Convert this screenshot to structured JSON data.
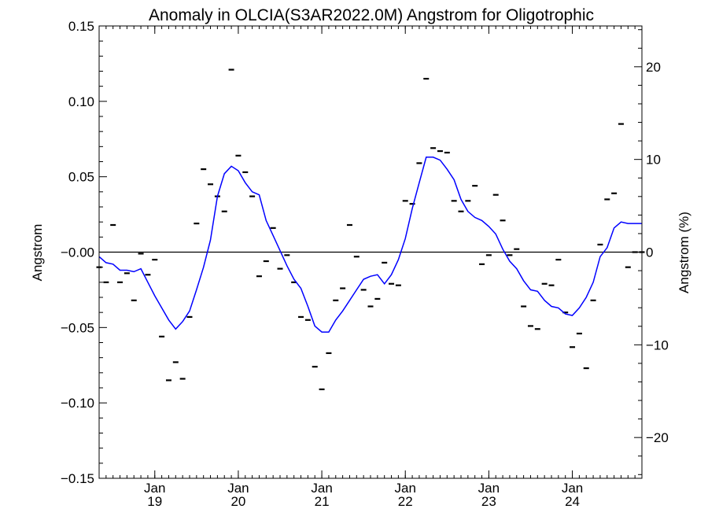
{
  "chart_data": {
    "type": "scatter",
    "title": "Anomaly in OLCIA(S3AR2022.0M) Angstrom for Oligotrophic",
    "ylabel": "Angstrom",
    "ylabel_right": "Angstrom (%)",
    "xlabel": "",
    "ylim": [
      -0.15,
      0.15
    ],
    "ylim_right": [
      -24.4,
      24.4
    ],
    "xlim": [
      "2018-05",
      "2024-11"
    ],
    "grid": false,
    "colors": {
      "line": "#0000ff",
      "points": "#000000",
      "zero_line": "#000000"
    },
    "y_ticks": [
      {
        "value": 0.15,
        "label": "0.15"
      },
      {
        "value": 0.1,
        "label": "0.10"
      },
      {
        "value": 0.05,
        "label": "0.05"
      },
      {
        "value": 0.0,
        "label": "-0.00"
      },
      {
        "value": -0.05,
        "label": "-0.05"
      },
      {
        "value": -0.1,
        "label": "-0.10"
      },
      {
        "value": -0.15,
        "label": "-0.15"
      }
    ],
    "y_ticks_right": [
      {
        "value": 20,
        "label": "20"
      },
      {
        "value": 10,
        "label": "10"
      },
      {
        "value": 0,
        "label": "0"
      },
      {
        "value": -10,
        "label": "-10"
      },
      {
        "value": -20,
        "label": "-20"
      }
    ],
    "x_ticks": [
      {
        "date": "2019-01",
        "month": "Jan",
        "year": "19"
      },
      {
        "date": "2020-01",
        "month": "Jan",
        "year": "20"
      },
      {
        "date": "2021-01",
        "month": "Jan",
        "year": "21"
      },
      {
        "date": "2022-01",
        "month": "Jan",
        "year": "22"
      },
      {
        "date": "2023-01",
        "month": "Jan",
        "year": "23"
      },
      {
        "date": "2024-01",
        "month": "Jan",
        "year": "24"
      }
    ],
    "series": [
      {
        "kind": "points",
        "x": [
          "2018-05",
          "2018-06",
          "2018-07",
          "2018-08",
          "2018-09",
          "2018-10",
          "2018-11",
          "2018-12",
          "2019-01",
          "2019-02",
          "2019-03",
          "2019-04",
          "2019-05",
          "2019-06",
          "2019-07",
          "2019-08",
          "2019-09",
          "2019-10",
          "2019-11",
          "2019-12",
          "2020-01",
          "2020-02",
          "2020-03",
          "2020-04",
          "2020-05",
          "2020-06",
          "2020-07",
          "2020-08",
          "2020-09",
          "2020-10",
          "2020-11",
          "2020-12",
          "2021-01",
          "2021-02",
          "2021-03",
          "2021-04",
          "2021-05",
          "2021-06",
          "2021-07",
          "2021-08",
          "2021-09",
          "2021-10",
          "2021-11",
          "2021-12",
          "2022-01",
          "2022-02",
          "2022-03",
          "2022-04",
          "2022-05",
          "2022-06",
          "2022-07",
          "2022-08",
          "2022-09",
          "2022-10",
          "2022-11",
          "2022-12",
          "2023-01",
          "2023-02",
          "2023-03",
          "2023-04",
          "2023-05",
          "2023-06",
          "2023-07",
          "2023-08",
          "2023-09",
          "2023-10",
          "2023-11",
          "2023-12",
          "2024-01",
          "2024-02",
          "2024-03",
          "2024-04",
          "2024-05",
          "2024-06",
          "2024-07",
          "2024-08",
          "2024-09",
          "2024-10",
          "2024-11"
        ],
        "y": [
          -0.01,
          -0.02,
          0.018,
          -0.02,
          -0.014,
          -0.032,
          -0.001,
          -0.015,
          -0.005,
          -0.056,
          -0.085,
          -0.073,
          -0.084,
          -0.043,
          0.019,
          0.055,
          0.045,
          0.037,
          0.027,
          0.121,
          0.064,
          0.053,
          0.037,
          -0.016,
          -0.006,
          0.016,
          -0.011,
          -0.002,
          -0.02,
          -0.043,
          -0.045,
          -0.076,
          -0.091,
          -0.067,
          -0.032,
          -0.024,
          0.018,
          -0.003,
          -0.025,
          -0.036,
          -0.031,
          -0.007,
          -0.021,
          -0.022,
          0.034,
          0.032,
          0.059,
          0.115,
          0.069,
          0.067,
          0.066,
          0.034,
          0.027,
          0.034,
          0.044,
          -0.008,
          -0.002,
          0.038,
          0.021,
          -0.002,
          0.002,
          -0.036,
          -0.049,
          -0.051,
          -0.021,
          -0.022,
          -0.005,
          -0.04,
          -0.063,
          -0.054,
          -0.077,
          -0.032,
          0.005,
          0.035,
          0.039,
          0.085,
          -0.01,
          0.0,
          0.0
        ]
      },
      {
        "kind": "line",
        "name": "",
        "x": [
          "2018-05",
          "2018-06",
          "2018-07",
          "2018-08",
          "2018-09",
          "2018-10",
          "2018-11",
          "2018-12",
          "2019-01",
          "2019-02",
          "2019-03",
          "2019-04",
          "2019-05",
          "2019-06",
          "2019-07",
          "2019-08",
          "2019-09",
          "2019-10",
          "2019-11",
          "2019-12",
          "2020-01",
          "2020-02",
          "2020-03",
          "2020-04",
          "2020-05",
          "2020-06",
          "2020-07",
          "2020-08",
          "2020-09",
          "2020-10",
          "2020-11",
          "2020-12",
          "2021-01",
          "2021-02",
          "2021-03",
          "2021-04",
          "2021-05",
          "2021-06",
          "2021-07",
          "2021-08",
          "2021-09",
          "2021-10",
          "2021-11",
          "2021-12",
          "2022-01",
          "2022-02",
          "2022-03",
          "2022-04",
          "2022-05",
          "2022-06",
          "2022-07",
          "2022-08",
          "2022-09",
          "2022-10",
          "2022-11",
          "2022-12",
          "2023-01",
          "2023-02",
          "2023-03",
          "2023-04",
          "2023-05",
          "2023-06",
          "2023-07",
          "2023-08",
          "2023-09",
          "2023-10",
          "2023-11",
          "2023-12",
          "2024-01",
          "2024-02",
          "2024-03",
          "2024-04",
          "2024-05",
          "2024-06",
          "2024-07",
          "2024-08",
          "2024-09",
          "2024-10",
          "2024-11"
        ],
        "y": [
          -0.003,
          -0.007,
          -0.008,
          -0.012,
          -0.012,
          -0.013,
          -0.011,
          -0.02,
          -0.029,
          -0.037,
          -0.045,
          -0.051,
          -0.046,
          -0.039,
          -0.025,
          -0.01,
          0.008,
          0.037,
          0.052,
          0.057,
          0.054,
          0.046,
          0.04,
          0.038,
          0.021,
          0.011,
          0.001,
          -0.009,
          -0.018,
          -0.024,
          -0.036,
          -0.049,
          -0.053,
          -0.053,
          -0.045,
          -0.039,
          -0.032,
          -0.025,
          -0.018,
          -0.016,
          -0.015,
          -0.021,
          -0.015,
          -0.005,
          0.009,
          0.029,
          0.046,
          0.063,
          0.063,
          0.061,
          0.055,
          0.048,
          0.035,
          0.027,
          0.023,
          0.021,
          0.017,
          0.012,
          0.002,
          -0.006,
          -0.011,
          -0.019,
          -0.025,
          -0.026,
          -0.032,
          -0.036,
          -0.037,
          -0.041,
          -0.042,
          -0.037,
          -0.03,
          -0.02,
          -0.003,
          0.003,
          0.016,
          0.02,
          0.019,
          0.019,
          0.019
        ]
      }
    ]
  }
}
